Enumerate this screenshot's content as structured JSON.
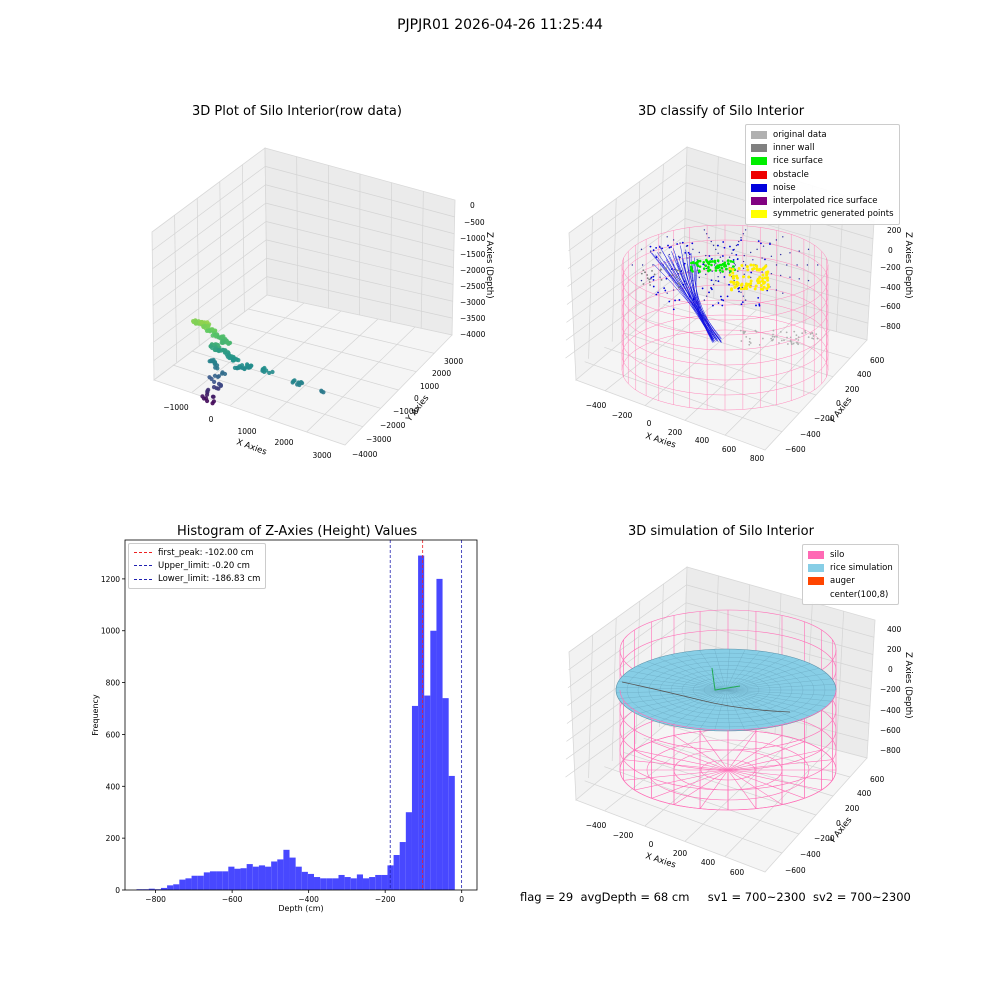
{
  "figure_title": "PJPJR01 2026-04-26 11:25:44",
  "status": {
    "flag": "flag = 29",
    "avg_depth": "avgDepth = 68 cm",
    "sv1": "sv1 = 700~2300",
    "sv2": "sv2 = 700~2300"
  },
  "chart_data": [
    {
      "type": "scatter",
      "title": "3D Plot of Silo Interior(row data)",
      "xlabel": "X Axies",
      "ylabel": "Y Axies",
      "zlabel": "Z Axies (Depth)",
      "x_ticks": [
        "−1000",
        "0",
        "1000",
        "2000",
        "3000"
      ],
      "y_ticks": [
        "3000",
        "2000",
        "1000",
        "0",
        "−1000",
        "−2000",
        "−3000",
        "−4000"
      ],
      "z_ticks": [
        "0",
        "−500",
        "−1000",
        "−1500",
        "−2000",
        "−2500",
        "−3000",
        "−3500",
        "−4000"
      ],
      "xlim": [
        -1500,
        3300
      ],
      "ylim": [
        -4200,
        3300
      ],
      "zlim": [
        -4300,
        200
      ],
      "colormap": "viridis",
      "points": [
        [
          -300,
          0,
          -700
        ],
        [
          -200,
          100,
          -650
        ],
        [
          -100,
          150,
          -600
        ],
        [
          0,
          200,
          -750
        ],
        [
          100,
          100,
          -900
        ],
        [
          200,
          0,
          -1100
        ],
        [
          300,
          -100,
          -1200
        ],
        [
          400,
          0,
          -1300
        ],
        [
          200,
          100,
          -1500
        ],
        [
          100,
          0,
          -1700
        ],
        [
          300,
          -200,
          -1800
        ],
        [
          500,
          -100,
          -1900
        ],
        [
          700,
          0,
          -2000
        ],
        [
          1000,
          0,
          -2100
        ],
        [
          900,
          200,
          -2200
        ],
        [
          1500,
          0,
          -2100
        ],
        [
          2300,
          0,
          -2300
        ],
        [
          2900,
          -100,
          -2500
        ],
        [
          100,
          0,
          -2300
        ],
        [
          150,
          0,
          -2500
        ],
        [
          300,
          0,
          -2700
        ],
        [
          200,
          50,
          -2900
        ],
        [
          100,
          0,
          -3100
        ],
        [
          150,
          0,
          -3300
        ],
        [
          100,
          -50,
          -3500
        ],
        [
          50,
          0,
          -3700
        ],
        [
          0,
          0,
          -3900
        ],
        [
          -100,
          0,
          -4100
        ],
        [
          -50,
          0,
          -4200
        ]
      ]
    },
    {
      "type": "scatter",
      "title": "3D classify of Silo Interior",
      "xlabel": "X Axies",
      "ylabel": "Y Axies",
      "zlabel": "Z Axies (Depth)",
      "x_ticks": [
        "−400",
        "−200",
        "0",
        "200",
        "400",
        "600",
        "800"
      ],
      "y_ticks": [
        "600",
        "400",
        "200",
        "0",
        "−200",
        "−400",
        "−600"
      ],
      "z_ticks": [
        "200",
        "0",
        "−200",
        "−400",
        "−600",
        "−800"
      ],
      "legend": [
        {
          "label": "original data",
          "color": "#b0b0b0"
        },
        {
          "label": "inner wall",
          "color": "#808080"
        },
        {
          "label": "rice surface",
          "color": "#00ee00"
        },
        {
          "label": "obstacle",
          "color": "#ee0000"
        },
        {
          "label": "noise",
          "color": "#0000dd"
        },
        {
          "label": "interpolated rice surface",
          "color": "#800080"
        },
        {
          "label": "symmetric generated points",
          "color": "#ffff00"
        }
      ]
    },
    {
      "type": "bar",
      "title": "Histogram of Z-Axies (Height) Values",
      "xlabel": "Depth (cm)",
      "ylabel": "Frequency",
      "xlim": [
        -880,
        40
      ],
      "ylim": [
        0,
        1350
      ],
      "x_ticks": [
        -800,
        -600,
        -400,
        -200,
        0
      ],
      "y_ticks": [
        0,
        200,
        400,
        600,
        800,
        1000,
        1200
      ],
      "bar_color": "#4848ff",
      "bin_edges": [
        -850.0,
        -834.0,
        -818.0,
        -802.0,
        -786.0,
        -770.0,
        -754.0,
        -738.0,
        -722.0,
        -706.0,
        -690.0,
        -674.0,
        -658.0,
        -642.0,
        -626.0,
        -610.0,
        -594.0,
        -578.0,
        -562.0,
        -546.0,
        -530.0,
        -514.0,
        -498.0,
        -482.0,
        -466.0,
        -450.0,
        -434.0,
        -418.0,
        -402.0,
        -386.0,
        -370.0,
        -354.0,
        -338.0,
        -322.0,
        -306.0,
        -290.0,
        -274.0,
        -258.0,
        -242.0,
        -226.0,
        -210.0,
        -194.0,
        -178.0,
        -162.0,
        -146.0,
        -130.0,
        -114.0,
        -98.0,
        -82.0,
        -66.0,
        -50.0,
        -34.0,
        -18.0,
        -2.0
      ],
      "counts": [
        3,
        3,
        5,
        3,
        8,
        18,
        22,
        40,
        45,
        55,
        55,
        68,
        72,
        72,
        72,
        90,
        82,
        84,
        100,
        90,
        95,
        90,
        110,
        118,
        155,
        125,
        90,
        70,
        62,
        50,
        45,
        45,
        45,
        58,
        50,
        45,
        60,
        45,
        50,
        58,
        58,
        95,
        135,
        185,
        300,
        710,
        1290,
        750,
        1000,
        1200,
        740,
        440,
        0
      ],
      "lines": [
        {
          "label": "first_peak: -102.00 cm",
          "x": -102.0,
          "color": "#ee2020"
        },
        {
          "label": "Upper_limit: -0.20 cm",
          "x": -0.2,
          "color": "#2020b0"
        },
        {
          "label": "Lower_limit: -186.83 cm",
          "x": -186.83,
          "color": "#2020b0"
        }
      ]
    },
    {
      "type": "scatter",
      "title": "3D simulation of Silo Interior",
      "xlabel": "X Axies",
      "ylabel": "Y Axies",
      "zlabel": "Z Axies (Depth)",
      "x_ticks": [
        "−400",
        "−200",
        "0",
        "200",
        "400",
        "600"
      ],
      "y_ticks": [
        "600",
        "400",
        "200",
        "0",
        "−200",
        "−400",
        "−600"
      ],
      "z_ticks": [
        "400",
        "200",
        "0",
        "−200",
        "−400",
        "−600",
        "−800"
      ],
      "legend": [
        {
          "label": "silo",
          "color": "#ff69b4"
        },
        {
          "label": "rice simulation",
          "color": "#87cee6"
        },
        {
          "label": "auger",
          "color": "#ff4500"
        },
        {
          "label": "center(100,8)",
          "color": ""
        }
      ]
    }
  ]
}
